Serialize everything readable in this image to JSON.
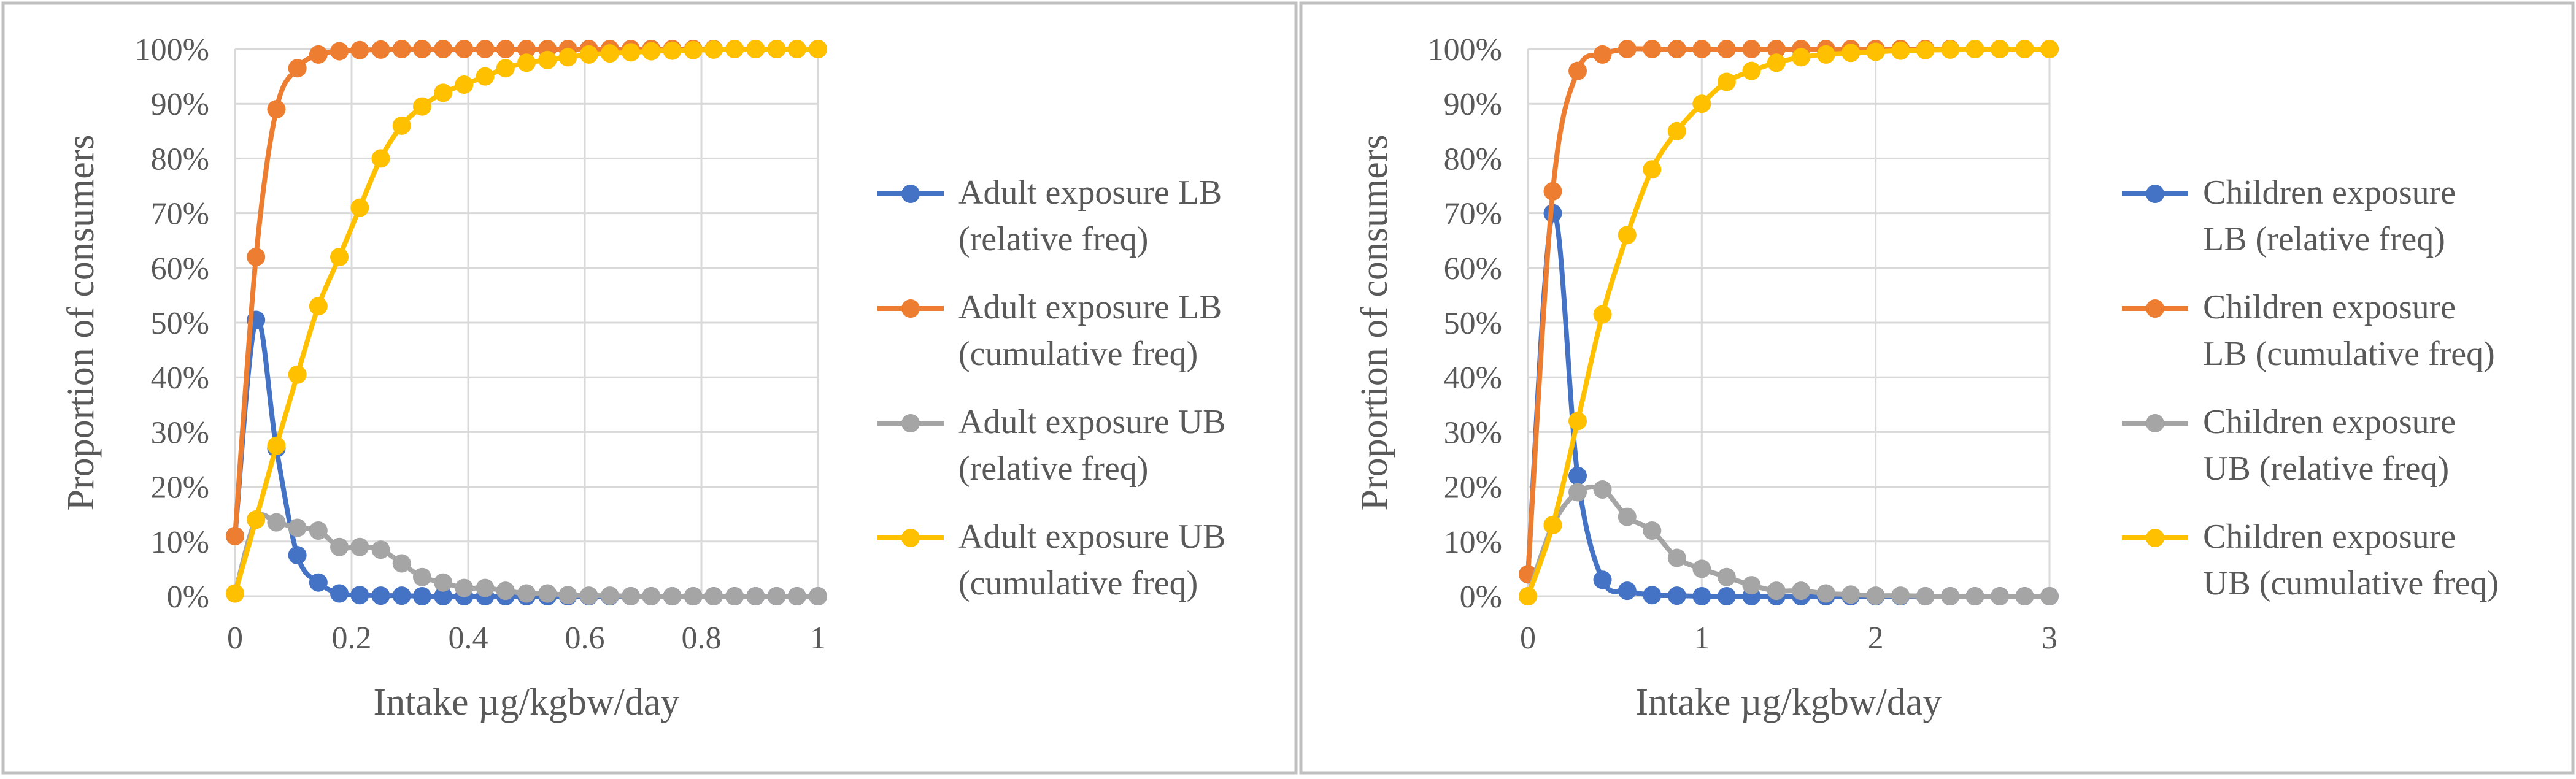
{
  "colors": {
    "series": [
      "#4472C4",
      "#ED7D31",
      "#A5A5A5",
      "#FFC000"
    ],
    "grid": "#D9D9D9",
    "text": "#595959",
    "panel_border": "#BFBFBF"
  },
  "chart_data": [
    {
      "type": "line",
      "title": "",
      "xlabel": "Intake µg/kgbw/day",
      "ylabel": "Proportion of consumers",
      "xlim": [
        0,
        1
      ],
      "ylim": [
        0,
        1
      ],
      "x_ticks": [
        0,
        0.2,
        0.4,
        0.6,
        0.8,
        1
      ],
      "x_tick_labels": [
        "0",
        "0.2",
        "0.4",
        "0.6",
        "0.8",
        "1"
      ],
      "y_ticks": [
        0,
        0.1,
        0.2,
        0.3,
        0.4,
        0.5,
        0.6,
        0.7,
        0.8,
        0.9,
        1
      ],
      "y_tick_labels": [
        "0%",
        "10%",
        "20%",
        "30%",
        "40%",
        "50%",
        "60%",
        "70%",
        "80%",
        "90%",
        "100%"
      ],
      "grid": true,
      "legend_position": "right",
      "x": [
        0,
        0.036,
        0.071,
        0.107,
        0.143,
        0.179,
        0.214,
        0.25,
        0.286,
        0.321,
        0.357,
        0.393,
        0.429,
        0.464,
        0.5,
        0.536,
        0.571,
        0.607,
        0.643,
        0.679,
        0.714,
        0.75,
        0.786,
        0.821,
        0.857,
        0.893,
        0.929,
        0.964,
        1.0
      ],
      "series": [
        {
          "name": "Adult exposure LB (relative freq)",
          "legend_lines": [
            "Adult exposure LB",
            "(relative freq)"
          ],
          "values": [
            0.11,
            0.505,
            0.27,
            0.075,
            0.025,
            0.005,
            0.002,
            0.001,
            0.001,
            0,
            0,
            0,
            0,
            0,
            0,
            0,
            0,
            0,
            0,
            0,
            0,
            0,
            0,
            0,
            0,
            0,
            0,
            0,
            0
          ]
        },
        {
          "name": "Adult exposure LB (cumulative freq)",
          "legend_lines": [
            "Adult exposure LB",
            "(cumulative freq)"
          ],
          "values": [
            0.11,
            0.62,
            0.89,
            0.965,
            0.99,
            0.996,
            0.998,
            0.999,
            1,
            1,
            1,
            1,
            1,
            1,
            1,
            1,
            1,
            1,
            1,
            1,
            1,
            1,
            1,
            1,
            1,
            1,
            1,
            1,
            1
          ]
        },
        {
          "name": "Adult exposure UB (relative freq)",
          "legend_lines": [
            "Adult exposure UB",
            "(relative freq)"
          ],
          "values": [
            0.005,
            0.14,
            0.135,
            0.125,
            0.12,
            0.09,
            0.09,
            0.085,
            0.06,
            0.035,
            0.025,
            0.015,
            0.015,
            0.01,
            0.005,
            0.005,
            0.002,
            0.001,
            0.001,
            0,
            0,
            0,
            0,
            0,
            0,
            0,
            0,
            0,
            0
          ]
        },
        {
          "name": "Adult exposure UB (cumulative freq)",
          "legend_lines": [
            "Adult exposure UB",
            "(cumulative freq)"
          ],
          "values": [
            0.005,
            0.14,
            0.275,
            0.405,
            0.53,
            0.62,
            0.71,
            0.8,
            0.86,
            0.895,
            0.92,
            0.935,
            0.95,
            0.965,
            0.975,
            0.98,
            0.985,
            0.99,
            0.992,
            0.994,
            0.996,
            0.997,
            0.998,
            0.999,
            1,
            1,
            1,
            1,
            1
          ]
        }
      ]
    },
    {
      "type": "line",
      "title": "",
      "xlabel": "Intake µg/kgbw/day",
      "ylabel": "Proportion of consumers",
      "xlim": [
        0,
        3
      ],
      "ylim": [
        0,
        1
      ],
      "x_ticks": [
        0,
        1,
        2,
        3
      ],
      "x_tick_labels": [
        "0",
        "1",
        "2",
        "3"
      ],
      "y_ticks": [
        0,
        0.1,
        0.2,
        0.3,
        0.4,
        0.5,
        0.6,
        0.7,
        0.8,
        0.9,
        1
      ],
      "y_tick_labels": [
        "0%",
        "10%",
        "20%",
        "30%",
        "40%",
        "50%",
        "60%",
        "70%",
        "80%",
        "90%",
        "100%"
      ],
      "grid": true,
      "legend_position": "right",
      "x": [
        0,
        0.143,
        0.286,
        0.429,
        0.571,
        0.714,
        0.857,
        1.0,
        1.143,
        1.286,
        1.429,
        1.571,
        1.714,
        1.857,
        2.0,
        2.143,
        2.286,
        2.429,
        2.571,
        2.714,
        2.857,
        3.0
      ],
      "series": [
        {
          "name": "Children exposure LB (relative freq)",
          "legend_lines": [
            "Children exposure",
            "LB (relative freq)"
          ],
          "values": [
            0.04,
            0.7,
            0.22,
            0.03,
            0.01,
            0.002,
            0.001,
            0,
            0,
            0,
            0,
            0,
            0,
            0,
            0,
            0,
            0,
            0,
            0,
            0,
            0,
            0
          ]
        },
        {
          "name": "Children exposure LB (cumulative freq)",
          "legend_lines": [
            "Children exposure",
            "LB (cumulative freq)"
          ],
          "values": [
            0.04,
            0.74,
            0.96,
            0.99,
            1,
            1,
            1,
            1,
            1,
            1,
            1,
            1,
            1,
            1,
            1,
            1,
            1,
            1,
            1,
            1,
            1,
            1
          ]
        },
        {
          "name": "Children exposure UB (relative freq)",
          "legend_lines": [
            "Children exposure",
            "UB (relative freq)"
          ],
          "values": [
            0,
            0.13,
            0.19,
            0.195,
            0.145,
            0.12,
            0.07,
            0.05,
            0.035,
            0.02,
            0.01,
            0.01,
            0.005,
            0.003,
            0.001,
            0.001,
            0,
            0,
            0,
            0,
            0,
            0
          ]
        },
        {
          "name": "Children exposure UB (cumulative freq)",
          "legend_lines": [
            "Children exposure",
            "UB (cumulative freq)"
          ],
          "values": [
            0,
            0.13,
            0.32,
            0.515,
            0.66,
            0.78,
            0.85,
            0.9,
            0.94,
            0.96,
            0.975,
            0.985,
            0.99,
            0.993,
            0.995,
            0.997,
            0.998,
            0.999,
            1,
            1,
            1,
            1
          ]
        }
      ]
    }
  ]
}
